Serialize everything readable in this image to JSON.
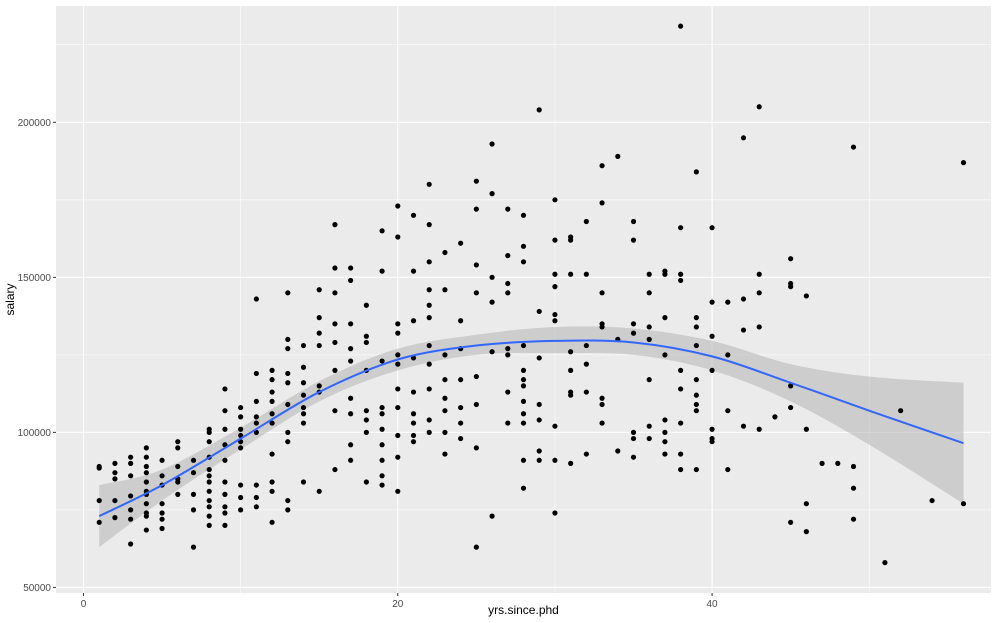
{
  "chart_data": {
    "type": "scatter",
    "xlabel": "yrs.since.phd",
    "ylabel": "salary",
    "xlim": [
      -1.75,
      57.75
    ],
    "ylim": [
      48200,
      237500
    ],
    "x_ticks": [
      0,
      20,
      40
    ],
    "y_ticks": [
      50000,
      100000,
      150000,
      200000
    ],
    "x_tick_labels": [
      "0",
      "20",
      "40"
    ],
    "y_tick_labels": [
      "50000",
      "100000",
      "150000",
      "200000"
    ],
    "grid": true,
    "legend": "none",
    "colors": {
      "panel": "#ebebeb",
      "grid": "#ffffff",
      "points": "#000000",
      "smooth_line": "#3366ff",
      "ribbon": "#b4b4b4"
    },
    "points": [
      [
        1,
        88500
      ],
      [
        1,
        89000
      ],
      [
        1,
        78000
      ],
      [
        1,
        71000
      ],
      [
        2,
        90000
      ],
      [
        2,
        87000
      ],
      [
        2,
        78000
      ],
      [
        2,
        72500
      ],
      [
        2,
        85000
      ],
      [
        3,
        92000
      ],
      [
        3,
        90000
      ],
      [
        3,
        86000
      ],
      [
        3,
        79500
      ],
      [
        3,
        75000
      ],
      [
        3,
        72000
      ],
      [
        3,
        64000
      ],
      [
        4,
        95000
      ],
      [
        4,
        92000
      ],
      [
        4,
        89000
      ],
      [
        4,
        87000
      ],
      [
        4,
        84000
      ],
      [
        4,
        81000
      ],
      [
        4,
        80000
      ],
      [
        4,
        77000
      ],
      [
        4,
        74000
      ],
      [
        4,
        73000
      ],
      [
        4,
        68500
      ],
      [
        5,
        91000
      ],
      [
        5,
        86000
      ],
      [
        5,
        83000
      ],
      [
        5,
        77000
      ],
      [
        5,
        74000
      ],
      [
        5,
        72000
      ],
      [
        5,
        69000
      ],
      [
        6,
        97000
      ],
      [
        6,
        95000
      ],
      [
        6,
        89000
      ],
      [
        6,
        85000
      ],
      [
        6,
        84000
      ],
      [
        6,
        80000
      ],
      [
        7,
        91000
      ],
      [
        7,
        87000
      ],
      [
        7,
        80000
      ],
      [
        7,
        75000
      ],
      [
        7,
        63000
      ],
      [
        8,
        101000
      ],
      [
        8,
        100000
      ],
      [
        8,
        97000
      ],
      [
        8,
        92000
      ],
      [
        8,
        88000
      ],
      [
        8,
        86000
      ],
      [
        8,
        84000
      ],
      [
        8,
        81000
      ],
      [
        8,
        78000
      ],
      [
        8,
        76000
      ],
      [
        8,
        73000
      ],
      [
        8,
        70000
      ],
      [
        9,
        114000
      ],
      [
        9,
        107000
      ],
      [
        9,
        101000
      ],
      [
        9,
        96000
      ],
      [
        9,
        91000
      ],
      [
        9,
        84000
      ],
      [
        9,
        80000
      ],
      [
        9,
        76000
      ],
      [
        9,
        74000
      ],
      [
        9,
        70000
      ],
      [
        10,
        108000
      ],
      [
        10,
        105000
      ],
      [
        10,
        101000
      ],
      [
        10,
        99000
      ],
      [
        10,
        97000
      ],
      [
        10,
        95000
      ],
      [
        10,
        83000
      ],
      [
        10,
        79000
      ],
      [
        10,
        75000
      ],
      [
        11,
        143000
      ],
      [
        11,
        119000
      ],
      [
        11,
        110000
      ],
      [
        11,
        105000
      ],
      [
        11,
        103000
      ],
      [
        11,
        100000
      ],
      [
        11,
        83000
      ],
      [
        11,
        79000
      ],
      [
        11,
        76000
      ],
      [
        12,
        120000
      ],
      [
        12,
        117000
      ],
      [
        12,
        113000
      ],
      [
        12,
        110000
      ],
      [
        12,
        106000
      ],
      [
        12,
        103000
      ],
      [
        12,
        93000
      ],
      [
        12,
        84000
      ],
      [
        12,
        81000
      ],
      [
        12,
        71000
      ],
      [
        13,
        145000
      ],
      [
        13,
        130000
      ],
      [
        13,
        127000
      ],
      [
        13,
        119000
      ],
      [
        13,
        116000
      ],
      [
        13,
        109000
      ],
      [
        13,
        100000
      ],
      [
        13,
        97000
      ],
      [
        13,
        78000
      ],
      [
        13,
        75000
      ],
      [
        14,
        128000
      ],
      [
        14,
        121000
      ],
      [
        14,
        116000
      ],
      [
        14,
        112000
      ],
      [
        14,
        108000
      ],
      [
        14,
        106000
      ],
      [
        14,
        103000
      ],
      [
        14,
        84000
      ],
      [
        15,
        146000
      ],
      [
        15,
        137000
      ],
      [
        15,
        132000
      ],
      [
        15,
        128000
      ],
      [
        15,
        115000
      ],
      [
        15,
        113000
      ],
      [
        15,
        81000
      ],
      [
        16,
        167000
      ],
      [
        16,
        153000
      ],
      [
        16,
        145000
      ],
      [
        16,
        135000
      ],
      [
        16,
        129000
      ],
      [
        16,
        120000
      ],
      [
        16,
        107000
      ],
      [
        16,
        88000
      ],
      [
        17,
        153000
      ],
      [
        17,
        149000
      ],
      [
        17,
        135000
      ],
      [
        17,
        127000
      ],
      [
        17,
        123000
      ],
      [
        17,
        111000
      ],
      [
        17,
        106000
      ],
      [
        17,
        96000
      ],
      [
        17,
        91000
      ],
      [
        18,
        141000
      ],
      [
        18,
        131000
      ],
      [
        18,
        129000
      ],
      [
        18,
        120000
      ],
      [
        18,
        107000
      ],
      [
        18,
        104000
      ],
      [
        18,
        100000
      ],
      [
        18,
        84000
      ],
      [
        19,
        165000
      ],
      [
        19,
        152000
      ],
      [
        19,
        123000
      ],
      [
        19,
        108000
      ],
      [
        19,
        106000
      ],
      [
        19,
        101000
      ],
      [
        19,
        96000
      ],
      [
        19,
        91000
      ],
      [
        19,
        86000
      ],
      [
        19,
        83000
      ],
      [
        20,
        173000
      ],
      [
        20,
        163000
      ],
      [
        20,
        135000
      ],
      [
        20,
        132000
      ],
      [
        20,
        125000
      ],
      [
        20,
        122000
      ],
      [
        20,
        114000
      ],
      [
        20,
        108000
      ],
      [
        20,
        99000
      ],
      [
        20,
        92000
      ],
      [
        20,
        81000
      ],
      [
        21,
        170000
      ],
      [
        21,
        152000
      ],
      [
        21,
        136000
      ],
      [
        21,
        124000
      ],
      [
        21,
        113000
      ],
      [
        21,
        106000
      ],
      [
        21,
        103000
      ],
      [
        21,
        99000
      ],
      [
        21,
        97000
      ],
      [
        22,
        180000
      ],
      [
        22,
        167000
      ],
      [
        22,
        155000
      ],
      [
        22,
        146000
      ],
      [
        22,
        141000
      ],
      [
        22,
        137000
      ],
      [
        22,
        128000
      ],
      [
        22,
        122000
      ],
      [
        22,
        114000
      ],
      [
        22,
        104000
      ],
      [
        22,
        100000
      ],
      [
        23,
        158000
      ],
      [
        23,
        146000
      ],
      [
        23,
        125000
      ],
      [
        23,
        117000
      ],
      [
        23,
        111000
      ],
      [
        23,
        107000
      ],
      [
        23,
        100000
      ],
      [
        23,
        93000
      ],
      [
        24,
        161000
      ],
      [
        24,
        136000
      ],
      [
        24,
        127000
      ],
      [
        24,
        117000
      ],
      [
        24,
        108000
      ],
      [
        24,
        103000
      ],
      [
        24,
        98000
      ],
      [
        25,
        181000
      ],
      [
        25,
        172000
      ],
      [
        25,
        154000
      ],
      [
        25,
        145000
      ],
      [
        25,
        118000
      ],
      [
        25,
        109000
      ],
      [
        25,
        95000
      ],
      [
        25,
        63000
      ],
      [
        26,
        193000
      ],
      [
        26,
        177000
      ],
      [
        26,
        150000
      ],
      [
        26,
        142000
      ],
      [
        26,
        126000
      ],
      [
        26,
        73000
      ],
      [
        27,
        172000
      ],
      [
        27,
        157000
      ],
      [
        27,
        148000
      ],
      [
        27,
        145000
      ],
      [
        27,
        127000
      ],
      [
        27,
        125000
      ],
      [
        27,
        113000
      ],
      [
        27,
        103000
      ],
      [
        28,
        170000
      ],
      [
        28,
        160000
      ],
      [
        28,
        155000
      ],
      [
        28,
        128000
      ],
      [
        28,
        120000
      ],
      [
        28,
        117000
      ],
      [
        28,
        115000
      ],
      [
        28,
        110000
      ],
      [
        28,
        106000
      ],
      [
        28,
        103000
      ],
      [
        28,
        91000
      ],
      [
        28,
        82000
      ],
      [
        29,
        204000
      ],
      [
        29,
        139000
      ],
      [
        29,
        124000
      ],
      [
        29,
        109000
      ],
      [
        29,
        104000
      ],
      [
        29,
        94000
      ],
      [
        29,
        91000
      ],
      [
        30,
        175000
      ],
      [
        30,
        162000
      ],
      [
        30,
        151000
      ],
      [
        30,
        147000
      ],
      [
        30,
        138000
      ],
      [
        30,
        136000
      ],
      [
        30,
        102000
      ],
      [
        30,
        91000
      ],
      [
        30,
        74000
      ],
      [
        31,
        163000
      ],
      [
        31,
        162000
      ],
      [
        31,
        151000
      ],
      [
        31,
        126000
      ],
      [
        31,
        120000
      ],
      [
        31,
        113000
      ],
      [
        31,
        112000
      ],
      [
        31,
        90000
      ],
      [
        32,
        168000
      ],
      [
        32,
        151000
      ],
      [
        32,
        128000
      ],
      [
        32,
        122000
      ],
      [
        32,
        113000
      ],
      [
        32,
        93000
      ],
      [
        33,
        186000
      ],
      [
        33,
        174000
      ],
      [
        33,
        145000
      ],
      [
        33,
        135000
      ],
      [
        33,
        134000
      ],
      [
        33,
        111000
      ],
      [
        33,
        109000
      ],
      [
        33,
        103000
      ],
      [
        34,
        189000
      ],
      [
        34,
        130000
      ],
      [
        34,
        94000
      ],
      [
        35,
        168000
      ],
      [
        35,
        162000
      ],
      [
        35,
        135000
      ],
      [
        35,
        132000
      ],
      [
        35,
        100000
      ],
      [
        35,
        98000
      ],
      [
        35,
        92000
      ],
      [
        36,
        151000
      ],
      [
        36,
        145000
      ],
      [
        36,
        134000
      ],
      [
        36,
        130000
      ],
      [
        36,
        117000
      ],
      [
        36,
        102000
      ],
      [
        36,
        98000
      ],
      [
        37,
        152000
      ],
      [
        37,
        151000
      ],
      [
        37,
        137000
      ],
      [
        37,
        125000
      ],
      [
        37,
        104000
      ],
      [
        37,
        100000
      ],
      [
        37,
        97000
      ],
      [
        37,
        93000
      ],
      [
        38,
        231000
      ],
      [
        38,
        166000
      ],
      [
        38,
        151000
      ],
      [
        38,
        149000
      ],
      [
        38,
        120000
      ],
      [
        38,
        114000
      ],
      [
        38,
        103000
      ],
      [
        38,
        93000
      ],
      [
        38,
        88000
      ],
      [
        39,
        184000
      ],
      [
        39,
        137000
      ],
      [
        39,
        134000
      ],
      [
        39,
        128000
      ],
      [
        39,
        117000
      ],
      [
        39,
        112000
      ],
      [
        39,
        109000
      ],
      [
        39,
        107000
      ],
      [
        39,
        88000
      ],
      [
        40,
        166000
      ],
      [
        40,
        142000
      ],
      [
        40,
        131000
      ],
      [
        40,
        120000
      ],
      [
        40,
        101000
      ],
      [
        40,
        98000
      ],
      [
        40,
        97000
      ],
      [
        41,
        142000
      ],
      [
        41,
        125000
      ],
      [
        41,
        107000
      ],
      [
        41,
        88000
      ],
      [
        42,
        195000
      ],
      [
        42,
        143000
      ],
      [
        42,
        133000
      ],
      [
        42,
        102000
      ],
      [
        43,
        205000
      ],
      [
        43,
        151000
      ],
      [
        43,
        145000
      ],
      [
        43,
        134000
      ],
      [
        43,
        101000
      ],
      [
        44,
        105000
      ],
      [
        45,
        156000
      ],
      [
        45,
        148000
      ],
      [
        45,
        147000
      ],
      [
        45,
        115000
      ],
      [
        45,
        108000
      ],
      [
        45,
        71000
      ],
      [
        46,
        144000
      ],
      [
        46,
        101000
      ],
      [
        46,
        77000
      ],
      [
        46,
        68000
      ],
      [
        47,
        90000
      ],
      [
        48,
        90000
      ],
      [
        49,
        192000
      ],
      [
        49,
        89000
      ],
      [
        49,
        82000
      ],
      [
        49,
        72000
      ],
      [
        51,
        58000
      ],
      [
        52,
        107000
      ],
      [
        54,
        78000
      ],
      [
        56,
        187000
      ],
      [
        56,
        77000
      ]
    ],
    "smooth": {
      "x": [
        1,
        5,
        10,
        15,
        20,
        25,
        30,
        35,
        40,
        45,
        50,
        56
      ],
      "y": [
        73000,
        83000,
        98000,
        113000,
        123500,
        128000,
        129500,
        129000,
        124500,
        116000,
        107000,
        96500
      ],
      "se_lower": [
        63000,
        78000,
        94500,
        110000,
        120000,
        125000,
        125500,
        125000,
        120000,
        110000,
        96000,
        77000
      ],
      "se_upper": [
        83000,
        88000,
        101500,
        116500,
        127000,
        131500,
        134000,
        133500,
        129500,
        122000,
        118000,
        116000
      ]
    }
  }
}
